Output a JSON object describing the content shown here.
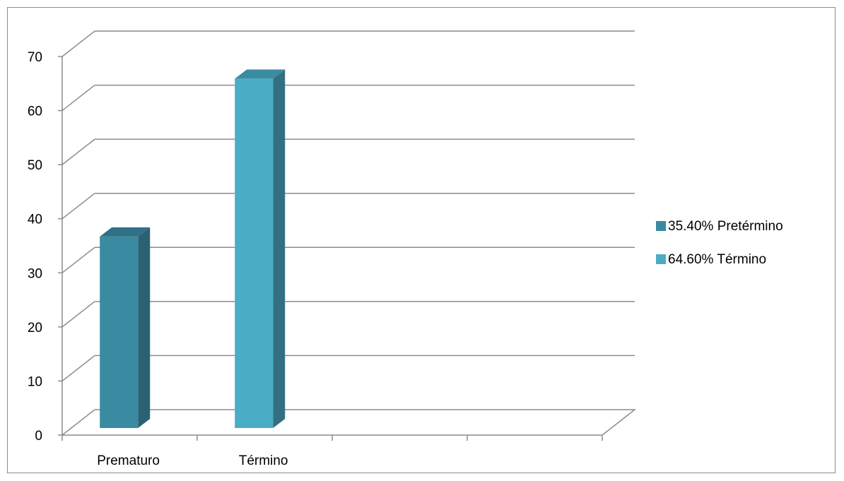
{
  "chart_data": {
    "type": "bar",
    "style": "3d-column",
    "categories": [
      "Prematuro",
      "Término",
      "",
      ""
    ],
    "series": [
      {
        "name": "35.40% Pretérmino",
        "color": "#3a8ba2",
        "side_color": "#2a6273",
        "top_color": "#2f7186",
        "values": [
          35.4,
          null,
          null,
          null
        ]
      },
      {
        "name": "64.60% Término",
        "color": "#4bacc6",
        "side_color": "#326f80",
        "top_color": "#3b8ca2",
        "values": [
          null,
          64.6,
          null,
          null
        ]
      }
    ],
    "title": "",
    "xlabel": "",
    "ylabel": "",
    "ylim": [
      0,
      70
    ],
    "yticks": [
      "0",
      "10",
      "20",
      "30",
      "40",
      "50",
      "60",
      "70"
    ],
    "grid": true,
    "legend_position": "right"
  }
}
